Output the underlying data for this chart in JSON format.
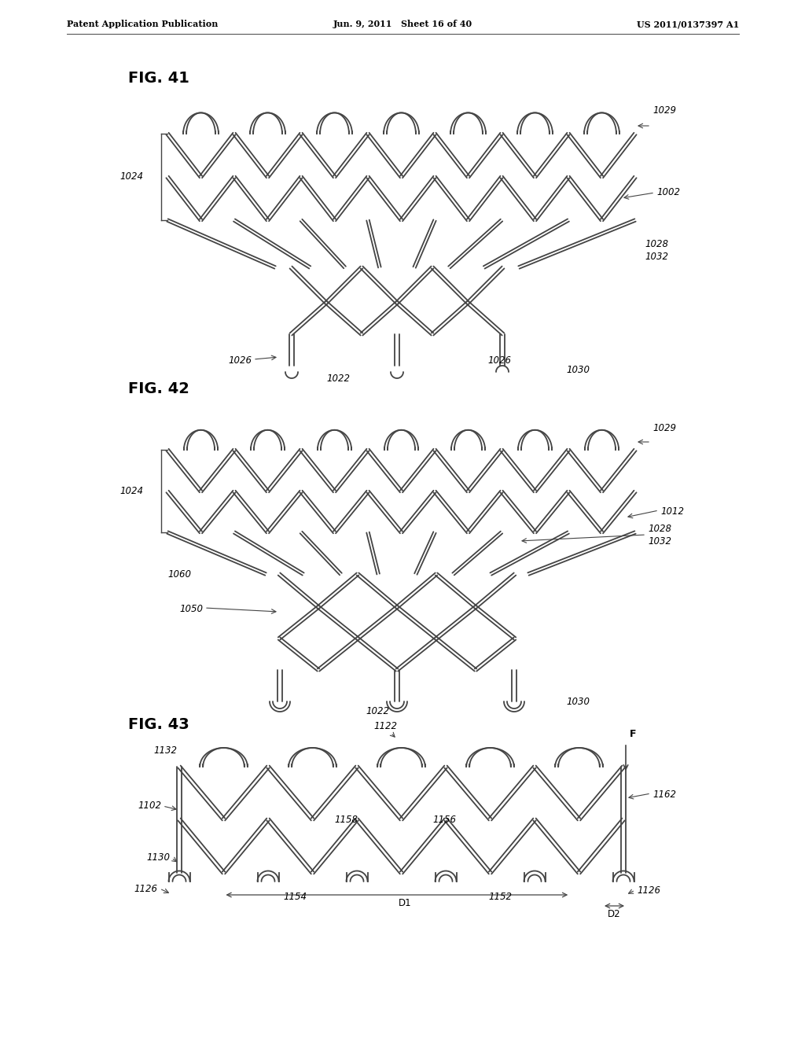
{
  "header_left": "Patent Application Publication",
  "header_center": "Jun. 9, 2011   Sheet 16 of 40",
  "header_right": "US 2011/0137397 A1",
  "fig41_label": "FIG. 41",
  "fig42_label": "FIG. 42",
  "fig43_label": "FIG. 43",
  "line_color": "#444444",
  "bg_color": "#ffffff",
  "text_color": "#000000"
}
